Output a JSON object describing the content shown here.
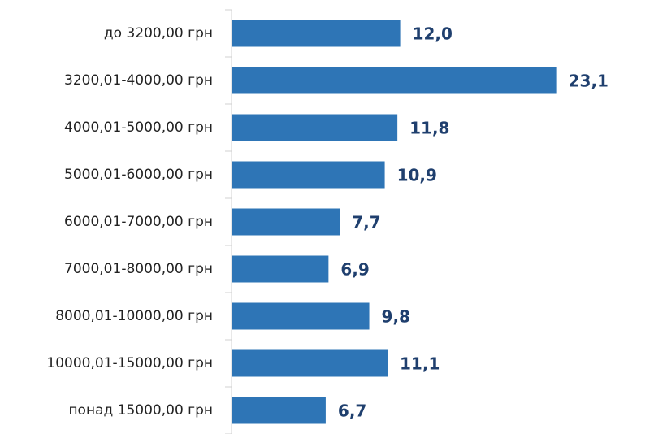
{
  "chart_data": {
    "type": "barh",
    "categories": [
      "до 3200,00 грн",
      "3200,01-4000,00 грн",
      "4000,01-5000,00 грн",
      "5000,01-6000,00 грн",
      "6000,01-7000,00 грн",
      "7000,01-8000,00 грн",
      "8000,01-10000,00 грн",
      "10000,01-15000,00 грн",
      "понад 15000,00 грн"
    ],
    "values": [
      12.0,
      23.1,
      11.8,
      10.9,
      7.7,
      6.9,
      9.8,
      11.1,
      6.7
    ],
    "value_labels": [
      "12,0",
      "23,1",
      "11,8",
      "10,9",
      "7,7",
      "6,9",
      "9,8",
      "11,1",
      "6,7"
    ],
    "color": "#2e75b6",
    "label_color": "#1f3f6e"
  }
}
